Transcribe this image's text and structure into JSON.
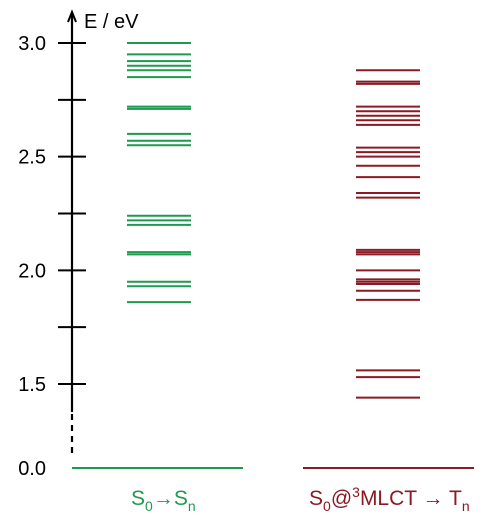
{
  "chart_data": {
    "type": "energy-level-diagram",
    "ylabel": "E / eV",
    "y_ticks": [
      "1.5",
      "2.0",
      "2.5",
      "3.0"
    ],
    "baseline_label": "0.0",
    "ylim": [
      1.4,
      3.05
    ],
    "axis_break": true,
    "series": [
      {
        "name_main": "S",
        "name_sub1": "0",
        "name_arrow": "→S",
        "name_sub2": "n",
        "color": "#1e9a50",
        "values": [
          3.0,
          2.95,
          2.92,
          2.9,
          2.88,
          2.85,
          2.72,
          2.71,
          2.6,
          2.57,
          2.55,
          2.24,
          2.22,
          2.2,
          2.08,
          2.07,
          1.95,
          1.93,
          1.86
        ]
      },
      {
        "name_main": "S",
        "name_sub1": "0",
        "name_mid": "@",
        "name_sup": "3",
        "name_arrow": "MLCT → T",
        "name_sub2": "n",
        "color": "#8b1a24",
        "values": [
          2.88,
          2.83,
          2.82,
          2.72,
          2.7,
          2.68,
          2.66,
          2.64,
          2.54,
          2.52,
          2.5,
          2.46,
          2.41,
          2.34,
          2.32,
          2.09,
          2.08,
          2.07,
          2.0,
          1.96,
          1.95,
          1.94,
          1.91,
          1.87,
          1.56,
          1.53,
          1.44
        ]
      }
    ]
  }
}
